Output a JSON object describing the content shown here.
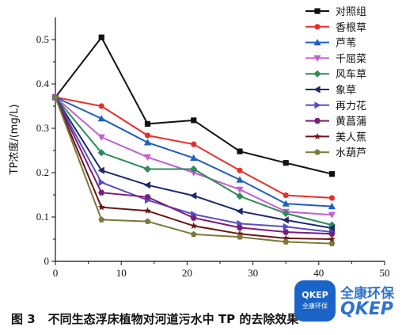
{
  "chart_data": {
    "type": "line",
    "ylabel": "TP浓度/(mg/L)",
    "xlabel": "",
    "xlim": [
      0,
      50
    ],
    "ylim": [
      0,
      0.55
    ],
    "xticks": [
      0,
      10,
      20,
      30,
      40,
      50
    ],
    "yticks": [
      0,
      0.1,
      0.2,
      0.3,
      0.4,
      0.5
    ],
    "legend_position": "top-right",
    "series": [
      {
        "name": "对照组",
        "color": "#111111",
        "marker": "square",
        "points": [
          [
            0,
            0.37
          ],
          [
            7,
            0.505
          ],
          [
            14,
            0.31
          ],
          [
            21,
            0.318
          ],
          [
            28,
            0.248
          ],
          [
            35,
            0.222
          ],
          [
            42,
            0.197
          ]
        ]
      },
      {
        "name": "香根草",
        "color": "#e8302a",
        "marker": "circle",
        "points": [
          [
            0,
            0.37
          ],
          [
            7,
            0.35
          ],
          [
            14,
            0.284
          ],
          [
            21,
            0.264
          ],
          [
            28,
            0.205
          ],
          [
            35,
            0.149
          ],
          [
            42,
            0.143
          ]
        ]
      },
      {
        "name": "芦苇",
        "color": "#1f5fbf",
        "marker": "triangle-up",
        "points": [
          [
            0,
            0.37
          ],
          [
            7,
            0.322
          ],
          [
            14,
            0.268
          ],
          [
            21,
            0.233
          ],
          [
            28,
            0.184
          ],
          [
            35,
            0.13
          ],
          [
            42,
            0.124
          ]
        ]
      },
      {
        "name": "千屈菜",
        "color": "#c25fd1",
        "marker": "triangle-down",
        "points": [
          [
            0,
            0.37
          ],
          [
            7,
            0.28
          ],
          [
            14,
            0.235
          ],
          [
            21,
            0.2
          ],
          [
            28,
            0.162
          ],
          [
            35,
            0.112
          ],
          [
            42,
            0.105
          ]
        ]
      },
      {
        "name": "风车草",
        "color": "#2e8b57",
        "marker": "diamond",
        "points": [
          [
            0,
            0.37
          ],
          [
            7,
            0.245
          ],
          [
            14,
            0.208
          ],
          [
            21,
            0.208
          ],
          [
            28,
            0.147
          ],
          [
            35,
            0.108
          ],
          [
            42,
            0.082
          ]
        ]
      },
      {
        "name": "象草",
        "color": "#1c2a6b",
        "marker": "triangle-left",
        "points": [
          [
            0,
            0.37
          ],
          [
            7,
            0.205
          ],
          [
            14,
            0.172
          ],
          [
            21,
            0.148
          ],
          [
            28,
            0.113
          ],
          [
            35,
            0.093
          ],
          [
            42,
            0.075
          ]
        ]
      },
      {
        "name": "再力花",
        "color": "#5a4fc2",
        "marker": "triangle-right",
        "points": [
          [
            0,
            0.37
          ],
          [
            7,
            0.178
          ],
          [
            14,
            0.138
          ],
          [
            21,
            0.106
          ],
          [
            28,
            0.085
          ],
          [
            35,
            0.078
          ],
          [
            42,
            0.066
          ]
        ]
      },
      {
        "name": "黄菖蒲",
        "color": "#7a1e7a",
        "marker": "hexagon",
        "points": [
          [
            0,
            0.37
          ],
          [
            7,
            0.155
          ],
          [
            14,
            0.145
          ],
          [
            21,
            0.098
          ],
          [
            28,
            0.076
          ],
          [
            35,
            0.066
          ],
          [
            42,
            0.062
          ]
        ]
      },
      {
        "name": "美人蕉",
        "color": "#6b1515",
        "marker": "star",
        "points": [
          [
            0,
            0.37
          ],
          [
            7,
            0.122
          ],
          [
            14,
            0.114
          ],
          [
            21,
            0.08
          ],
          [
            28,
            0.062
          ],
          [
            35,
            0.052
          ],
          [
            42,
            0.05
          ]
        ]
      },
      {
        "name": "水葫芦",
        "color": "#7a7a3a",
        "marker": "pentagon",
        "points": [
          [
            0,
            0.37
          ],
          [
            7,
            0.094
          ],
          [
            14,
            0.09
          ],
          [
            21,
            0.061
          ],
          [
            28,
            0.055
          ],
          [
            35,
            0.044
          ],
          [
            42,
            0.04
          ]
        ]
      }
    ]
  },
  "caption": {
    "number": "图 3",
    "text": "不同生态浮床植物对河道污水中 TP 的去除效果"
  },
  "watermark": {
    "badge_top": "QKEP",
    "badge_bottom": "全康环保",
    "cn": "全康环保",
    "en": "QKEP"
  }
}
